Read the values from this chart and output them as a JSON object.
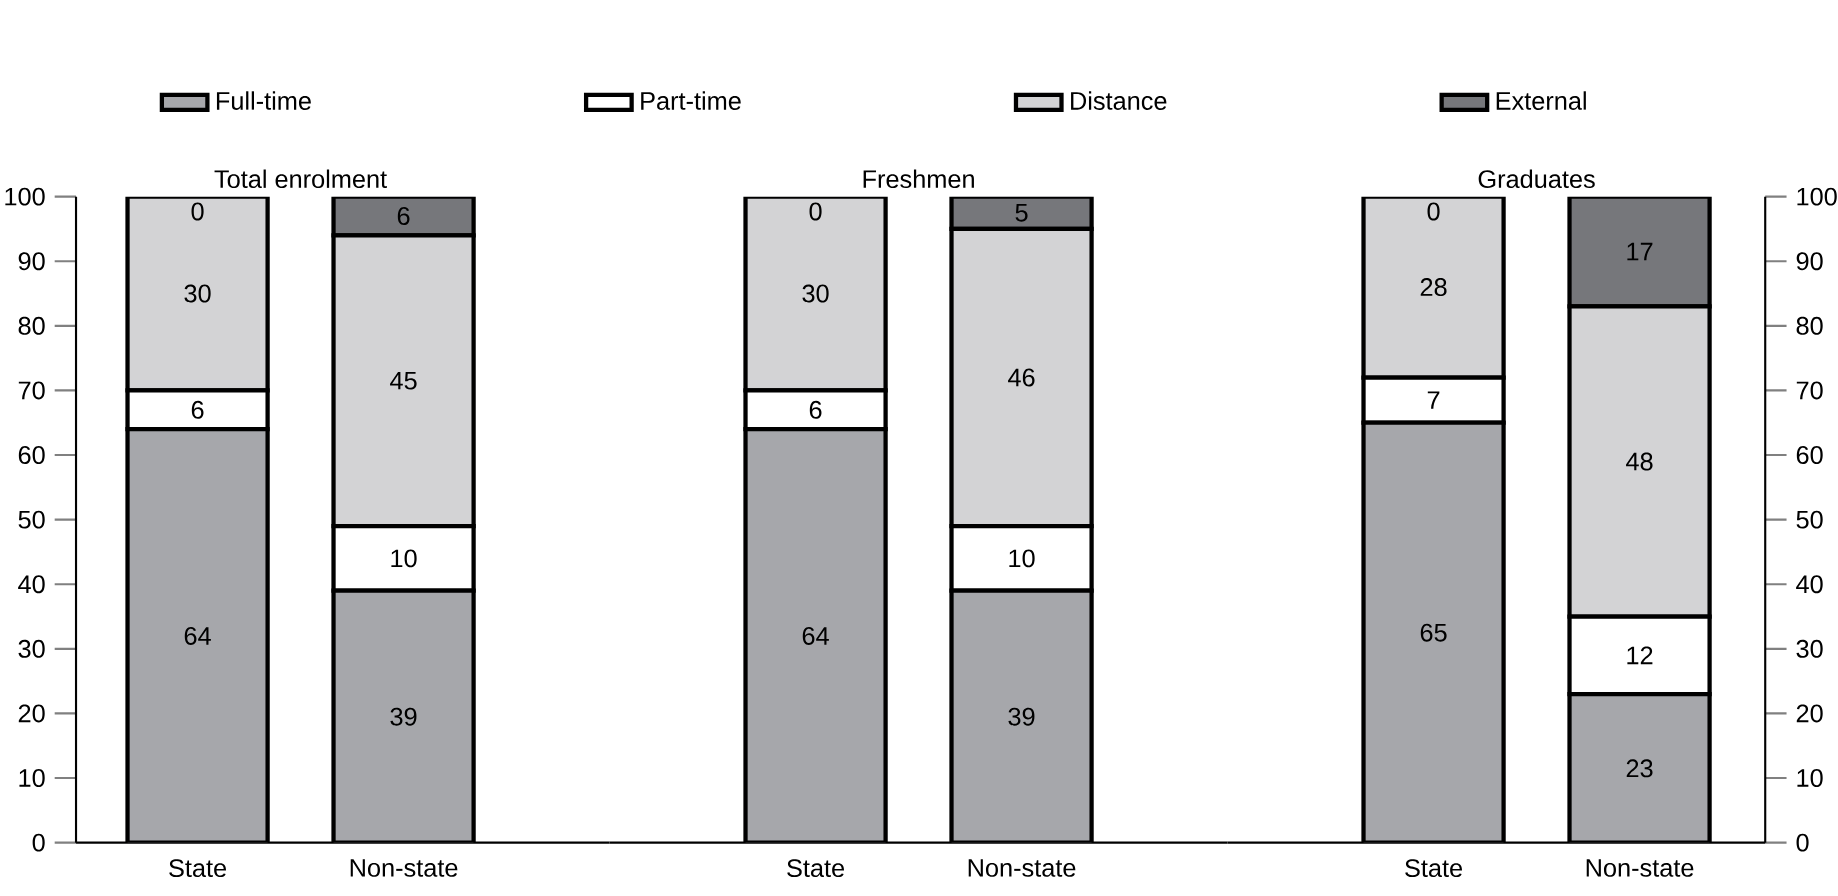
{
  "chart_data": [
    {
      "type": "bar",
      "stacked": true,
      "data_labels": true,
      "legend": "top",
      "title": "Total enrolment",
      "categories": [
        "State",
        "Non-state"
      ],
      "series": [
        {
          "name": "Full-time",
          "color": "#a6a7ab",
          "values": [
            64,
            39
          ]
        },
        {
          "name": "Part-time",
          "color": "#ffffff",
          "values": [
            6,
            10
          ]
        },
        {
          "name": "Distance",
          "color": "#d3d3d5",
          "values": [
            30,
            45
          ]
        },
        {
          "name": "External",
          "color": "#76777b",
          "values": [
            0,
            6
          ]
        }
      ],
      "ylim": [
        0,
        100
      ],
      "yticks": [
        0,
        10,
        20,
        30,
        40,
        50,
        60,
        70,
        80,
        90,
        100
      ]
    },
    {
      "type": "bar",
      "stacked": true,
      "data_labels": true,
      "title": "Freshmen",
      "categories": [
        "State",
        "Non-state"
      ],
      "series": [
        {
          "color": "#a6a7ab",
          "values": [
            64,
            39
          ]
        },
        {
          "color": "#ffffff",
          "values": [
            6,
            10
          ]
        },
        {
          "color": "#d3d3d5",
          "values": [
            30,
            46
          ]
        },
        {
          "color": "#76777b",
          "values": [
            0,
            5
          ]
        }
      ],
      "ylim": [
        0,
        100
      ],
      "yticks": [
        0,
        10,
        20,
        30,
        40,
        50,
        60,
        70,
        80,
        90,
        100
      ],
      "tick_labels": "x"
    },
    {
      "type": "bar",
      "stacked": true,
      "data_labels": true,
      "title": "Graduates",
      "categories": [
        "State",
        "Non-state"
      ],
      "series": [
        {
          "color": "#a6a7ab",
          "values": [
            65,
            23
          ],
          "axis": "y2"
        },
        {
          "color": "#ffffff",
          "values": [
            7,
            12
          ],
          "axis": "y2"
        },
        {
          "color": "#d3d3d5",
          "values": [
            28,
            48
          ],
          "axis": "y2"
        },
        {
          "color": "#76777b",
          "values": [
            0,
            17
          ],
          "axis": "y2"
        }
      ],
      "y2lim": [
        0,
        100
      ],
      "y2ticks": [
        0,
        10,
        20,
        30,
        40,
        50,
        60,
        70,
        80,
        90,
        100
      ]
    }
  ]
}
